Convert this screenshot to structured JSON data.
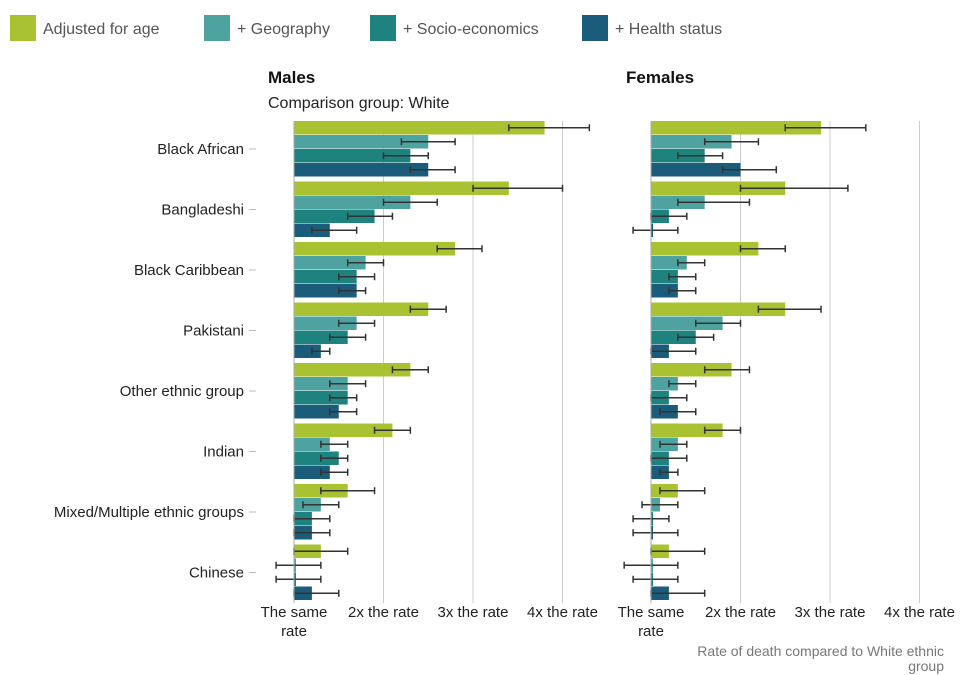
{
  "chart_data": {
    "type": "bar",
    "orientation": "horizontal",
    "legend": {
      "placement": "top",
      "items": [
        {
          "name": "Adjusted for age",
          "color": "#a8c232"
        },
        {
          "name": "+ Geography",
          "color": "#4ea3a0"
        },
        {
          "name": "+ Socio-economics",
          "color": "#1e827f"
        },
        {
          "name": "+ Health status",
          "color": "#1b5c7a"
        }
      ]
    },
    "categories": [
      "Black African",
      "Bangladeshi",
      "Black Caribbean",
      "Pakistani",
      "Other ethnic group",
      "Indian",
      "Mixed/Multiple ethnic groups",
      "Chinese"
    ],
    "x_ticks": [
      {
        "value": 1,
        "lines": [
          "The same",
          "rate"
        ]
      },
      {
        "value": 2,
        "lines": [
          "2x the rate"
        ]
      },
      {
        "value": 3,
        "lines": [
          "3x the rate"
        ]
      },
      {
        "value": 4,
        "lines": [
          "4x the rate"
        ]
      }
    ],
    "xlim": [
      1,
      4
    ],
    "grid": true,
    "x_axis_title_lines": [
      "Rate of death compared to White ethnic",
      "group"
    ],
    "panels": [
      {
        "title": "Males",
        "subtitle": "Comparison group: White",
        "series": [
          {
            "name": "Adjusted for age",
            "values": [
              3.8,
              3.4,
              2.8,
              2.5,
              2.3,
              2.1,
              1.6,
              1.3
            ],
            "ci": [
              [
                3.4,
                4.3
              ],
              [
                3.0,
                4.0
              ],
              [
                2.6,
                3.1
              ],
              [
                2.3,
                2.7
              ],
              [
                2.1,
                2.5
              ],
              [
                1.9,
                2.3
              ],
              [
                1.3,
                1.9
              ],
              [
                1.0,
                1.6
              ]
            ]
          },
          {
            "name": "+ Geography",
            "values": [
              2.5,
              2.3,
              1.8,
              1.7,
              1.6,
              1.4,
              1.3,
              1.0
            ],
            "ci": [
              [
                2.2,
                2.8
              ],
              [
                2.0,
                2.6
              ],
              [
                1.6,
                2.0
              ],
              [
                1.5,
                1.9
              ],
              [
                1.4,
                1.8
              ],
              [
                1.3,
                1.6
              ],
              [
                1.1,
                1.5
              ],
              [
                0.8,
                1.3
              ]
            ]
          },
          {
            "name": "+ Socio-economics",
            "values": [
              2.3,
              1.9,
              1.7,
              1.6,
              1.6,
              1.5,
              1.2,
              1.0
            ],
            "ci": [
              [
                2.0,
                2.5
              ],
              [
                1.6,
                2.1
              ],
              [
                1.5,
                1.9
              ],
              [
                1.4,
                1.8
              ],
              [
                1.4,
                1.7
              ],
              [
                1.3,
                1.6
              ],
              [
                1.0,
                1.4
              ],
              [
                0.8,
                1.3
              ]
            ]
          },
          {
            "name": "+ Health status",
            "values": [
              2.5,
              1.4,
              1.7,
              1.3,
              1.5,
              1.4,
              1.2,
              1.2
            ],
            "ci": [
              [
                2.3,
                2.8
              ],
              [
                1.2,
                1.7
              ],
              [
                1.5,
                1.8
              ],
              [
                1.2,
                1.4
              ],
              [
                1.4,
                1.7
              ],
              [
                1.3,
                1.6
              ],
              [
                1.0,
                1.4
              ],
              [
                1.0,
                1.5
              ]
            ]
          }
        ]
      },
      {
        "title": "Females",
        "subtitle": "",
        "series": [
          {
            "name": "Adjusted for age",
            "values": [
              2.9,
              2.5,
              2.2,
              2.5,
              1.9,
              1.8,
              1.3,
              1.2
            ],
            "ci": [
              [
                2.5,
                3.4
              ],
              [
                2.0,
                3.2
              ],
              [
                2.0,
                2.5
              ],
              [
                2.2,
                2.9
              ],
              [
                1.6,
                2.1
              ],
              [
                1.6,
                2.0
              ],
              [
                1.1,
                1.6
              ],
              [
                1.0,
                1.6
              ]
            ]
          },
          {
            "name": "+ Geography",
            "values": [
              1.9,
              1.6,
              1.4,
              1.8,
              1.3,
              1.3,
              1.1,
              1.0
            ],
            "ci": [
              [
                1.6,
                2.2
              ],
              [
                1.3,
                2.1
              ],
              [
                1.3,
                1.6
              ],
              [
                1.5,
                2.0
              ],
              [
                1.2,
                1.5
              ],
              [
                1.1,
                1.4
              ],
              [
                0.9,
                1.3
              ],
              [
                0.7,
                1.3
              ]
            ]
          },
          {
            "name": "+ Socio-economics",
            "values": [
              1.6,
              1.2,
              1.3,
              1.5,
              1.2,
              1.2,
              1.0,
              1.0
            ],
            "ci": [
              [
                1.3,
                1.8
              ],
              [
                1.0,
                1.4
              ],
              [
                1.2,
                1.5
              ],
              [
                1.3,
                1.7
              ],
              [
                1.0,
                1.4
              ],
              [
                1.0,
                1.4
              ],
              [
                0.8,
                1.2
              ],
              [
                0.8,
                1.3
              ]
            ]
          },
          {
            "name": "+ Health status",
            "values": [
              2.0,
              1.0,
              1.3,
              1.2,
              1.3,
              1.2,
              1.0,
              1.2
            ],
            "ci": [
              [
                1.8,
                2.4
              ],
              [
                0.8,
                1.3
              ],
              [
                1.2,
                1.5
              ],
              [
                1.0,
                1.5
              ],
              [
                1.1,
                1.5
              ],
              [
                1.1,
                1.3
              ],
              [
                0.8,
                1.3
              ],
              [
                1.0,
                1.6
              ]
            ]
          }
        ]
      }
    ]
  }
}
